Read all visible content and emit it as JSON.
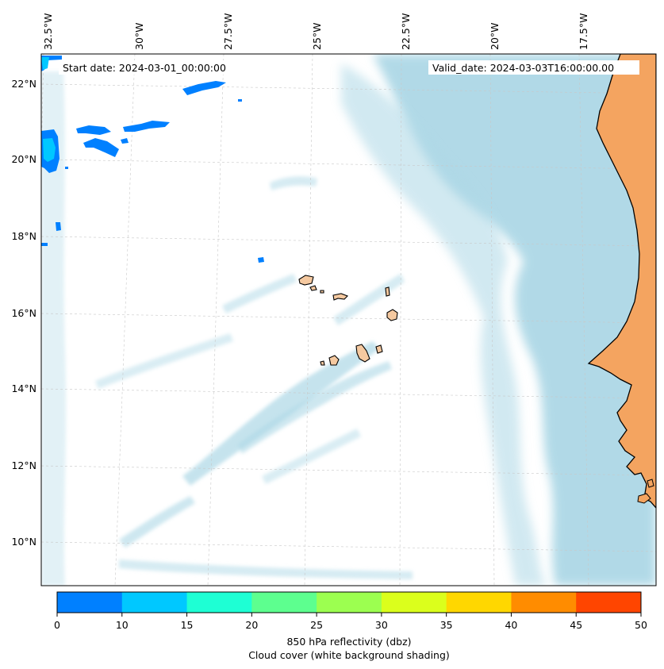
{
  "map": {
    "start_date_label": "Start date: 2024-03-01_00:00:00",
    "valid_date_label": "Valid_date: 2024-03-03T16:00:00.00",
    "lon_labels": [
      "32.5°W",
      "30°W",
      "27.5°W",
      "25°W",
      "22.5°W",
      "20°W",
      "17.5°W"
    ],
    "lat_labels": [
      "22°N",
      "20°N",
      "18°N",
      "16°N",
      "14°N",
      "12°N",
      "10°N"
    ],
    "colors": {
      "ocean": "#ffffff",
      "cloud": "#add8e6",
      "land": "#f4a460",
      "coast": "#000000",
      "grid": "#c8c8c8"
    }
  },
  "colorbar": {
    "ticks": [
      "0",
      "10",
      "15",
      "20",
      "25",
      "30",
      "35",
      "40",
      "45",
      "50"
    ],
    "colors": [
      "#0080ff",
      "#00c8ff",
      "#1effd4",
      "#5dff8f",
      "#9cff50",
      "#dbff1c",
      "#ffd700",
      "#ff8c00",
      "#ff4500"
    ],
    "label_line1": "850 hPa reflectivity (dbz)",
    "label_line2": "Cloud cover (white background shading)"
  }
}
